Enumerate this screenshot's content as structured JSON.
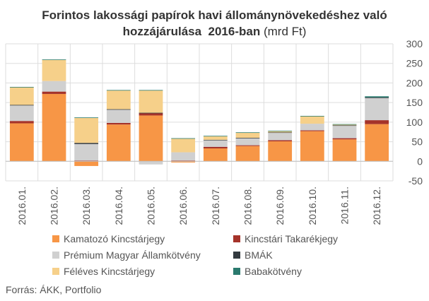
{
  "title": {
    "line1": "Forintos lakossági papírok havi állománynövekedéshez való",
    "line2_bold": "hozzájárulása  2016-ban",
    "line2_normal": " (mrd Ft)"
  },
  "source": "Forrás: ÁKK, Portfolio",
  "colors": {
    "Kamatozó Kincstárjegy": "#f79646",
    "Kincstári Takarékjegy": "#a5332a",
    "Prémium Magyar Államkötvény": "#d0d0d0",
    "BMÁK": "#333a3f",
    "Féléves Kincstárjegy": "#f6d08a",
    "Babakötvény": "#2a7a6e",
    "grid": "#dddddd"
  },
  "legend": [
    "Kamatozó Kincstárjegy",
    "Kincstári Takarékjegy",
    "Prémium Magyar Államkötvény",
    "BMÁK",
    "Féléves Kincstárjegy",
    "Babakötvény"
  ],
  "chart_data": {
    "type": "bar",
    "stacked": true,
    "categories": [
      "2016.01.",
      "2016.02.",
      "2016.03.",
      "2016.04.",
      "2016.05.",
      "2016.06.",
      "2016.07.",
      "2016.08.",
      "2016.09.",
      "2016.10.",
      "2016.11.",
      "2016.12."
    ],
    "series": [
      {
        "name": "Kamatozó Kincstárjegy",
        "values": [
          97,
          172,
          -12,
          94,
          117,
          -3,
          33,
          39,
          51,
          77,
          56,
          95
        ]
      },
      {
        "name": "Kincstári Takarékjegy",
        "values": [
          6,
          6,
          2,
          4,
          6,
          2,
          4,
          2,
          3,
          2,
          3,
          10
        ]
      },
      {
        "name": "Prémium Magyar Államkötvény",
        "values": [
          40,
          27,
          42,
          34,
          -8,
          21,
          17,
          18,
          19,
          17,
          32,
          57
        ]
      },
      {
        "name": "BMÁK",
        "values": [
          1,
          0,
          3,
          1,
          1,
          0,
          1,
          1,
          1,
          0,
          1,
          1
        ]
      },
      {
        "name": "Féléves Kincstárjegy",
        "values": [
          45,
          54,
          64,
          48,
          57,
          35,
          9,
          13,
          3,
          19,
          2,
          0
        ]
      },
      {
        "name": "Babakötvény",
        "values": [
          1,
          1,
          1,
          1,
          1,
          1,
          1,
          1,
          1,
          1,
          1,
          3
        ]
      }
    ],
    "ylim": [
      -50,
      300
    ],
    "yticks": [
      -50,
      0,
      50,
      100,
      150,
      200,
      250,
      300
    ],
    "ytick_labels": [
      "-50",
      "0",
      "50",
      "100",
      "150",
      "200",
      "250",
      "300"
    ],
    "grid": true,
    "y_axis_side": "right",
    "legend_position": "bottom"
  }
}
